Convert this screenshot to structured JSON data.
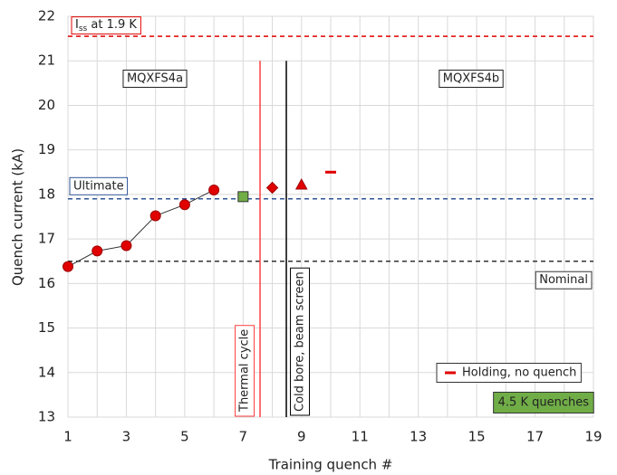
{
  "chart_data": {
    "type": "scatter",
    "x_label": "Training quench #",
    "y_label": "Quench current (kA)",
    "xlim": [
      1,
      19
    ],
    "ylim": [
      13,
      22
    ],
    "xticks": [
      1,
      3,
      5,
      7,
      9,
      11,
      13,
      15,
      17,
      19
    ],
    "yticks": [
      13,
      14,
      15,
      16,
      17,
      18,
      19,
      20,
      21,
      22
    ],
    "grid": true,
    "series": [
      {
        "marker": "circle",
        "color": "#e00000",
        "connect": true,
        "x": [
          1,
          2,
          3,
          4,
          5,
          6
        ],
        "values": [
          16.38,
          16.73,
          16.85,
          17.52,
          17.77,
          18.1
        ]
      },
      {
        "name": "4.5 K quenches",
        "marker": "square",
        "color": "#70ad47",
        "x": [
          7
        ],
        "values": [
          17.95
        ]
      },
      {
        "marker": "diamond",
        "color": "#e00000",
        "x": [
          8
        ],
        "values": [
          18.15
        ]
      },
      {
        "marker": "triangle",
        "color": "#e00000",
        "x": [
          9
        ],
        "values": [
          18.22
        ]
      },
      {
        "name": "Holding, no quench",
        "marker": "dash",
        "color": "#e00000",
        "x": [
          10
        ],
        "values": [
          18.5
        ]
      }
    ],
    "reference_lines": [
      {
        "label": {
          "main": "I",
          "sub": "ss",
          "rest": " at 1.9 K"
        },
        "value": 21.55,
        "color": "#e00000"
      },
      {
        "label": "Ultimate",
        "value": 17.9,
        "color": "#2f5597"
      },
      {
        "label": "Nominal",
        "value": 16.5,
        "color": "#333333"
      }
    ],
    "vertical_lines": [
      {
        "label": "Thermal cycle",
        "x": 7.58,
        "y_range": [
          13,
          21
        ],
        "color": "#ff4040"
      },
      {
        "label": "Cold bore, beam screen",
        "x": 8.48,
        "y_range": [
          13,
          21
        ],
        "color": "#000000"
      }
    ],
    "region_labels": [
      "MQXFS4a",
      "MQXFS4b"
    ]
  }
}
